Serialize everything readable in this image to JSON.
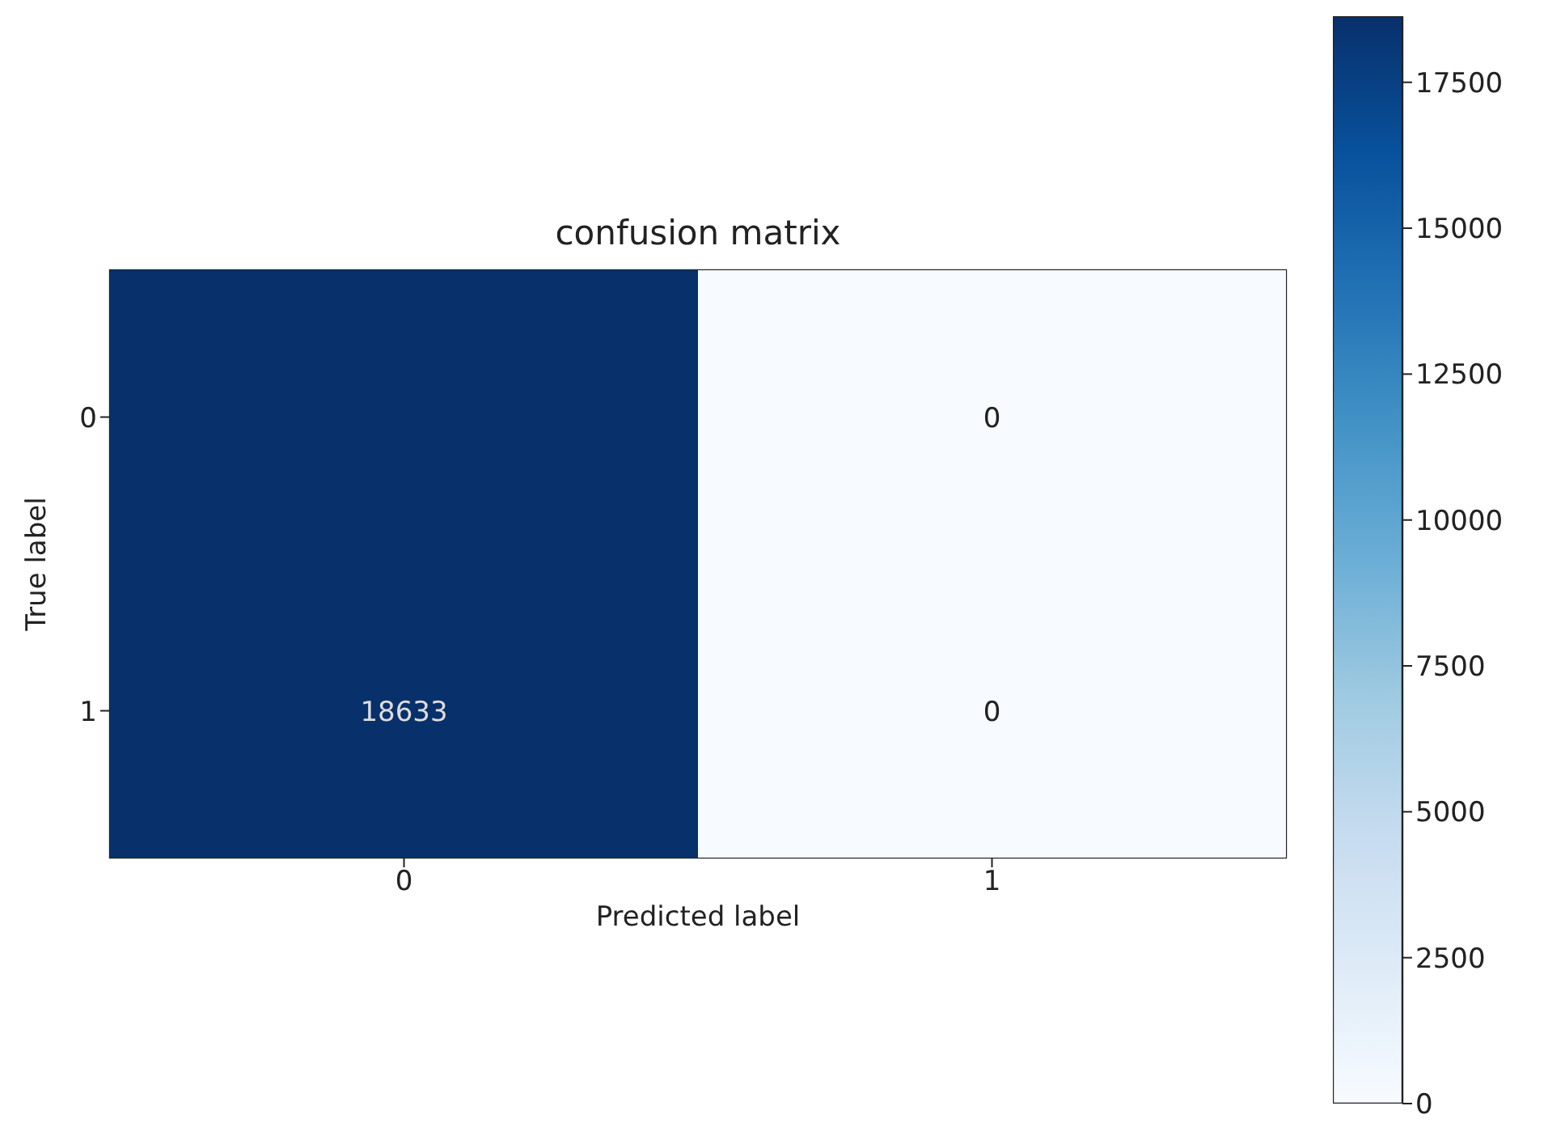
{
  "chart_data": {
    "type": "heatmap",
    "title": "confusion matrix",
    "xlabel": "Predicted label",
    "ylabel": "True label",
    "categories": [
      "0",
      "1"
    ],
    "y_categories": [
      "0",
      "1"
    ],
    "cells": [
      [
        18633,
        0
      ],
      [
        18633,
        0
      ]
    ],
    "cell_labels": [
      [
        null,
        "0"
      ],
      [
        "18633",
        "0"
      ]
    ],
    "clim": [
      0,
      18633
    ],
    "cticks": [
      0,
      2500,
      5000,
      7500,
      10000,
      12500,
      15000,
      17500
    ]
  }
}
